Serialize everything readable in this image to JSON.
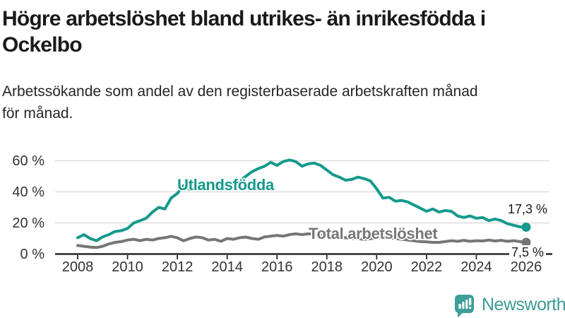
{
  "header": {
    "title_line1": "Högre arbetslöshet bland utrikes- än inrikesfödda i",
    "title_line2": "Ockelbo",
    "subtitle_line1": "Arbetssökande som andel av den registerbaserade arbetskraften månad",
    "subtitle_line2": "för månad."
  },
  "footer": {
    "brand": "Newsworthy"
  },
  "colors": {
    "accent_teal": "#14998c",
    "series_gray": "#767676",
    "logo_teal": "#3d9b94",
    "grid": "#d8d8d8",
    "axis": "#262626",
    "text_dark": "#1a1a1a"
  },
  "chart_data": {
    "type": "line",
    "title": "Högre arbetslöshet bland utrikes- än inrikesfödda i Ockelbo",
    "subtitle": "Arbetssökande som andel av den registerbaserade arbetskraften månad för månad.",
    "unit": "%",
    "xlim": [
      2008,
      2026
    ],
    "ylim": [
      0,
      63
    ],
    "xticks": [
      2008,
      2010,
      2012,
      2014,
      2016,
      2018,
      2020,
      2022,
      2024,
      2026
    ],
    "yticks": [
      0,
      20,
      40,
      60
    ],
    "ytick_suffix": " %",
    "grid": "horizontal",
    "legend_position": "inline-labels",
    "x": [
      2008,
      2008.25,
      2008.5,
      2008.75,
      2009,
      2009.25,
      2009.5,
      2009.75,
      2010,
      2010.25,
      2010.5,
      2010.75,
      2011,
      2011.25,
      2011.5,
      2011.75,
      2012,
      2012.25,
      2012.5,
      2012.75,
      2013,
      2013.25,
      2013.5,
      2013.75,
      2014,
      2014.25,
      2014.5,
      2014.75,
      2015,
      2015.25,
      2015.5,
      2015.75,
      2016,
      2016.25,
      2016.5,
      2016.75,
      2017,
      2017.25,
      2017.5,
      2017.75,
      2018,
      2018.25,
      2018.5,
      2018.75,
      2019,
      2019.25,
      2019.5,
      2019.75,
      2020,
      2020.25,
      2020.5,
      2020.75,
      2021,
      2021.25,
      2021.5,
      2021.75,
      2022,
      2022.25,
      2022.5,
      2022.75,
      2023,
      2023.25,
      2023.5,
      2023.75,
      2024,
      2024.25,
      2024.5,
      2024.75,
      2025,
      2025.25,
      2025.5,
      2025.75,
      2026
    ],
    "series": [
      {
        "name": "Utlandsfödda",
        "label": "Utlandsfödda",
        "color_key": "accent_teal",
        "end_label": "17,3 %",
        "end_value": 17.3,
        "values": [
          10.5,
          12.5,
          10,
          8.6,
          11,
          12.5,
          14.5,
          15,
          16.5,
          20,
          21.5,
          23,
          27,
          30,
          29,
          36,
          39,
          44,
          41.5,
          45,
          43.5,
          46,
          44,
          43,
          44.5,
          45.5,
          47,
          50,
          53,
          55,
          56.5,
          59,
          57,
          59.5,
          60.5,
          59.5,
          56.5,
          58,
          58.5,
          57,
          54,
          51,
          49.5,
          47.5,
          48,
          49.5,
          48.5,
          47,
          42,
          36,
          36.5,
          34,
          34.5,
          33.5,
          31.5,
          29.5,
          27.5,
          29,
          27,
          28,
          27.5,
          24.5,
          23.5,
          24.5,
          23,
          23.5,
          21.5,
          22.5,
          21.5,
          19.5,
          18.5,
          17.5,
          17.3
        ]
      },
      {
        "name": "Total arbetslöshet",
        "label": "Total arbetslöshet",
        "color_key": "series_gray",
        "end_label": "7,5 %",
        "end_value": 7.5,
        "values": [
          5.5,
          5,
          4.5,
          4.2,
          5,
          6.5,
          7.5,
          8,
          9,
          9.5,
          8.6,
          9.5,
          9,
          10,
          10.5,
          11.4,
          10.5,
          8.5,
          10,
          11,
          10.5,
          9,
          9.5,
          8.2,
          10,
          9.5,
          10.5,
          10.9,
          10,
          9.5,
          11,
          11.5,
          12,
          11.5,
          12.5,
          13,
          12.5,
          13,
          12.8,
          12.5,
          12,
          11.5,
          11,
          10.5,
          10,
          9.8,
          9.5,
          9.8,
          10.5,
          11,
          10.5,
          10,
          9.5,
          9,
          8.5,
          8,
          7.8,
          7.5,
          7.5,
          8,
          8.6,
          8.2,
          8.8,
          8.2,
          8.6,
          8.4,
          9,
          8.4,
          8.8,
          8.2,
          8.6,
          8,
          7.5
        ]
      }
    ]
  }
}
